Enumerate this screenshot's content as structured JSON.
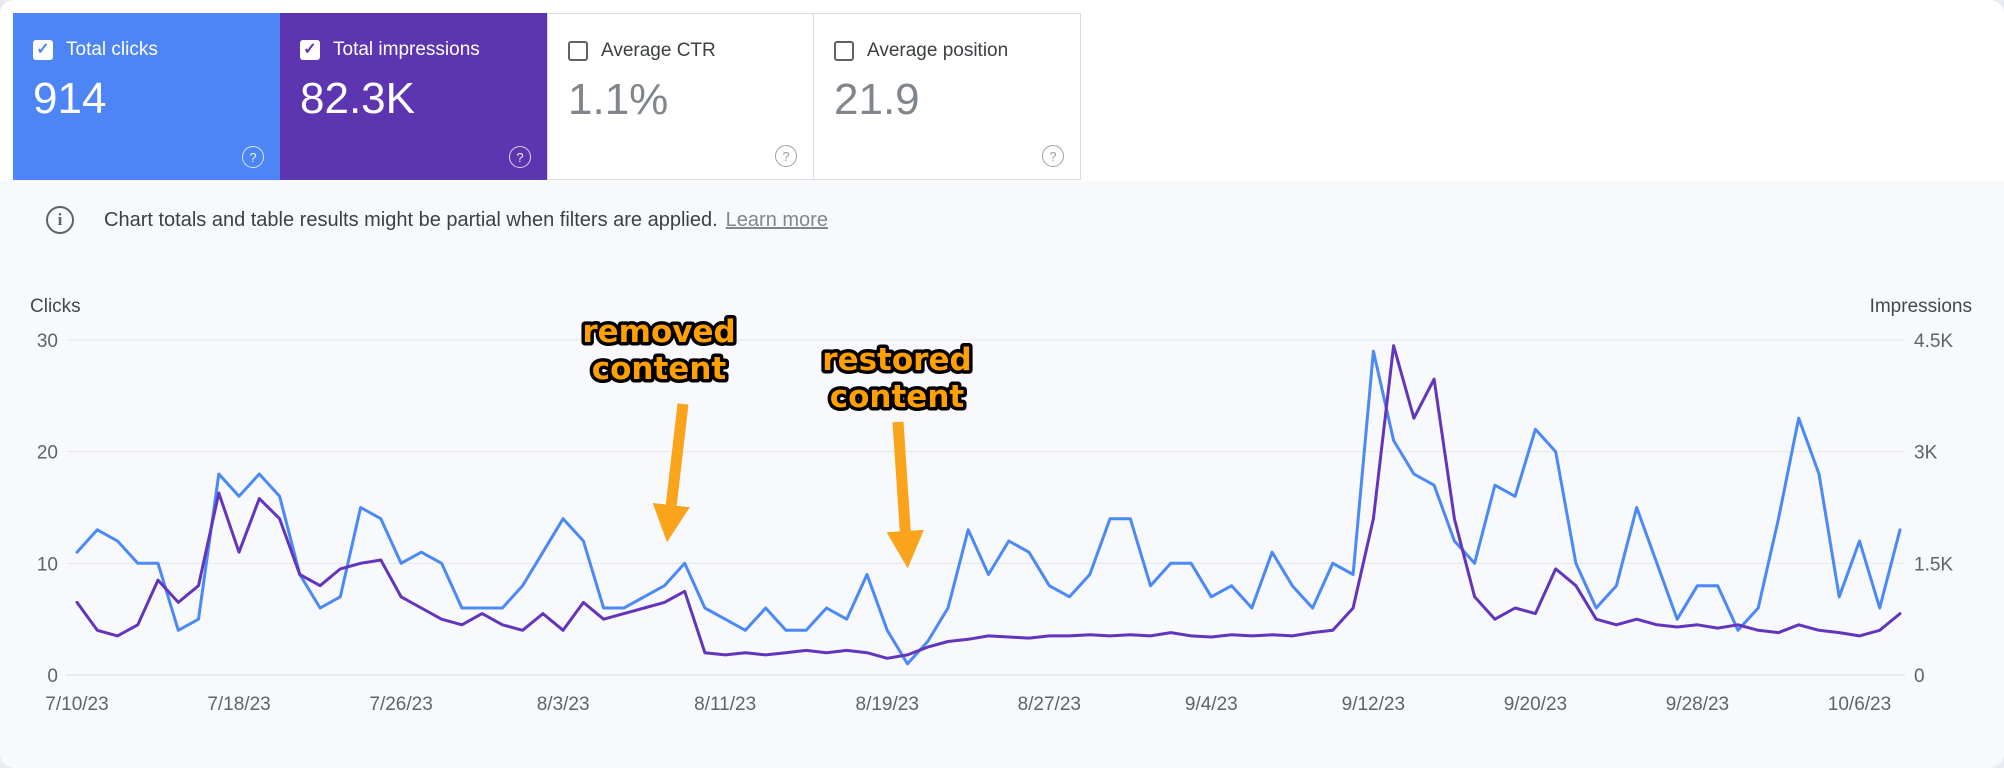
{
  "cards": [
    {
      "label": "Total clicks",
      "value": "914",
      "selected": true,
      "color": "#4e85f6"
    },
    {
      "label": "Total impressions",
      "value": "82.3K",
      "selected": true,
      "color": "#5e35b1"
    },
    {
      "label": "Average CTR",
      "value": "1.1%",
      "selected": false
    },
    {
      "label": "Average position",
      "value": "21.9",
      "selected": false
    }
  ],
  "icons": {
    "help": "?",
    "info": "i",
    "check": "✓"
  },
  "banner": {
    "text": "Chart totals and table results might be partial when filters are applied.",
    "link_label": "Learn more"
  },
  "chart_data": {
    "type": "line",
    "days": 91,
    "date_start": "7/10/23",
    "date_end": "10/8/23",
    "grid": true,
    "legend_position": "none",
    "left_axis": {
      "title": "Clicks",
      "max": 30,
      "ticks": [
        "30",
        "20",
        "10",
        "0"
      ]
    },
    "right_axis": {
      "title": "Impressions",
      "max": 4500,
      "ticks": [
        "4.5K",
        "3K",
        "1.5K",
        "0"
      ]
    },
    "x_tick_labels": [
      "7/10/23",
      "7/18/23",
      "7/26/23",
      "8/3/23",
      "8/11/23",
      "8/19/23",
      "8/27/23",
      "9/4/23",
      "9/12/23",
      "9/20/23",
      "9/28/23",
      "10/6/23"
    ],
    "series": [
      {
        "name": "Clicks",
        "axis": "left",
        "color": "#4a89f6",
        "values": [
          11,
          13,
          12,
          10,
          10,
          4,
          5,
          18,
          16,
          18,
          16,
          9,
          6,
          7,
          15,
          14,
          10,
          11,
          10,
          6,
          6,
          6,
          8,
          11,
          14,
          12,
          6,
          6,
          7,
          8,
          10,
          6,
          5,
          4,
          6,
          4,
          4,
          6,
          5,
          9,
          4,
          1,
          3,
          6,
          13,
          9,
          12,
          11,
          8,
          7,
          9,
          14,
          14,
          8,
          10,
          10,
          7,
          8,
          6,
          11,
          8,
          6,
          10,
          9,
          29,
          21,
          18,
          17,
          12,
          10,
          17,
          16,
          22,
          20,
          10,
          6,
          8,
          15,
          10,
          5,
          8,
          8,
          4,
          6,
          14,
          23,
          18,
          7,
          12,
          6,
          13
        ]
      },
      {
        "name": "Impressions",
        "axis": "right",
        "color": "#6335bd",
        "values": [
          975,
          600,
          525,
          675,
          1275,
          975,
          1200,
          2445,
          1650,
          2370,
          2100,
          1350,
          1200,
          1425,
          1500,
          1545,
          1050,
          900,
          750,
          675,
          825,
          675,
          600,
          825,
          600,
          975,
          750,
          825,
          900,
          975,
          1125,
          300,
          270,
          300,
          270,
          300,
          330,
          300,
          330,
          300,
          225,
          270,
          375,
          450,
          480,
          525,
          510,
          495,
          525,
          525,
          540,
          525,
          540,
          525,
          570,
          525,
          510,
          540,
          525,
          540,
          525,
          570,
          600,
          900,
          2100,
          4425,
          3450,
          3975,
          2100,
          1050,
          750,
          900,
          825,
          1425,
          1200,
          750,
          675,
          750,
          675,
          645,
          675,
          630,
          675,
          600,
          570,
          675,
          600,
          570,
          525,
          600,
          825
        ]
      }
    ],
    "annotations": [
      {
        "line1": "removed",
        "line2": "content"
      },
      {
        "line1": "restored",
        "line2": "content"
      }
    ],
    "annotation_style": {
      "text_color": "#ffa000",
      "outline_color": "#000000",
      "arrow_color": "#f9a41b"
    }
  }
}
